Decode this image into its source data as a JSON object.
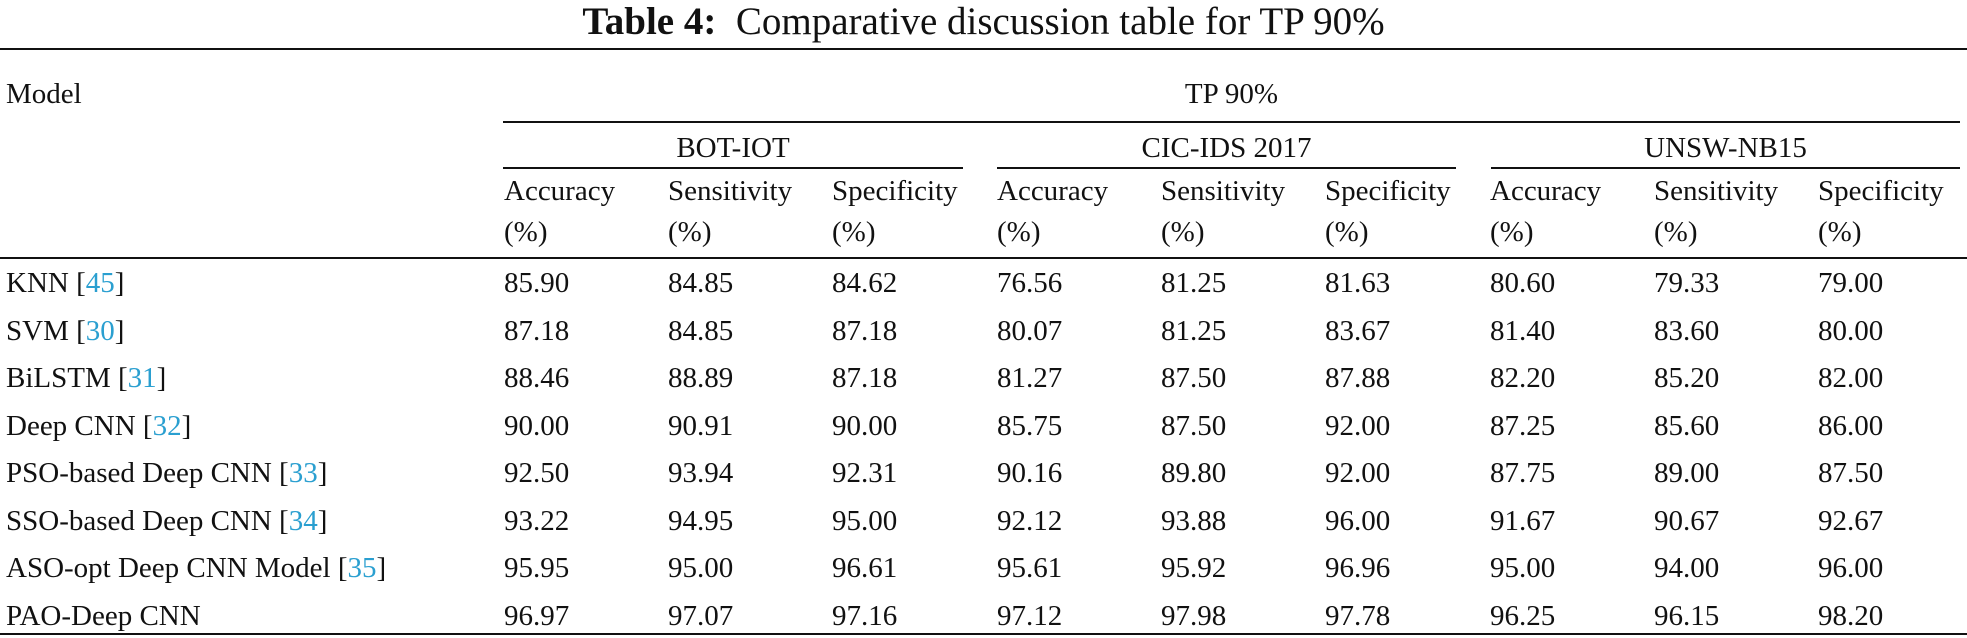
{
  "caption": {
    "label": "Table 4:",
    "text": "Comparative discussion table for TP 90%"
  },
  "header": {
    "model": "Model",
    "group": "TP 90%",
    "datasets": [
      "BOT-IOT",
      "CIC-IDS 2017",
      "UNSW-NB15"
    ],
    "metrics": [
      {
        "name": "Accuracy",
        "unit": "(%)"
      },
      {
        "name": "Sensitivity",
        "unit": "(%)"
      },
      {
        "name": "Specificity",
        "unit": "(%)"
      }
    ]
  },
  "rows": [
    {
      "model": "KNN [",
      "ref": "45",
      "close": "]",
      "values": [
        "85.90",
        "84.85",
        "84.62",
        "76.56",
        "81.25",
        "81.63",
        "80.60",
        "79.33",
        "79.00"
      ]
    },
    {
      "model": "SVM [",
      "ref": "30",
      "close": "]",
      "values": [
        "87.18",
        "84.85",
        "87.18",
        "80.07",
        "81.25",
        "83.67",
        "81.40",
        "83.60",
        "80.00"
      ]
    },
    {
      "model": "BiLSTM [",
      "ref": "31",
      "close": "]",
      "values": [
        "88.46",
        "88.89",
        "87.18",
        "81.27",
        "87.50",
        "87.88",
        "82.20",
        "85.20",
        "82.00"
      ]
    },
    {
      "model": "Deep CNN [",
      "ref": "32",
      "close": "]",
      "values": [
        "90.00",
        "90.91",
        "90.00",
        "85.75",
        "87.50",
        "92.00",
        "87.25",
        "85.60",
        "86.00"
      ]
    },
    {
      "model": "PSO-based Deep CNN [",
      "ref": "33",
      "close": "]",
      "values": [
        "92.50",
        "93.94",
        "92.31",
        "90.16",
        "89.80",
        "92.00",
        "87.75",
        "89.00",
        "87.50"
      ]
    },
    {
      "model": "SSO-based Deep CNN [",
      "ref": "34",
      "close": "]",
      "values": [
        "93.22",
        "94.95",
        "95.00",
        "92.12",
        "93.88",
        "96.00",
        "91.67",
        "90.67",
        "92.67"
      ]
    },
    {
      "model": "ASO-opt Deep CNN Model [",
      "ref": "35",
      "close": "]",
      "values": [
        "95.95",
        "95.00",
        "96.61",
        "95.61",
        "95.92",
        "96.96",
        "95.00",
        "94.00",
        "96.00"
      ]
    },
    {
      "model": "PAO-Deep CNN",
      "ref": "",
      "close": "",
      "values": [
        "96.97",
        "97.07",
        "97.16",
        "97.12",
        "97.98",
        "97.78",
        "96.25",
        "96.15",
        "98.20"
      ]
    }
  ]
}
